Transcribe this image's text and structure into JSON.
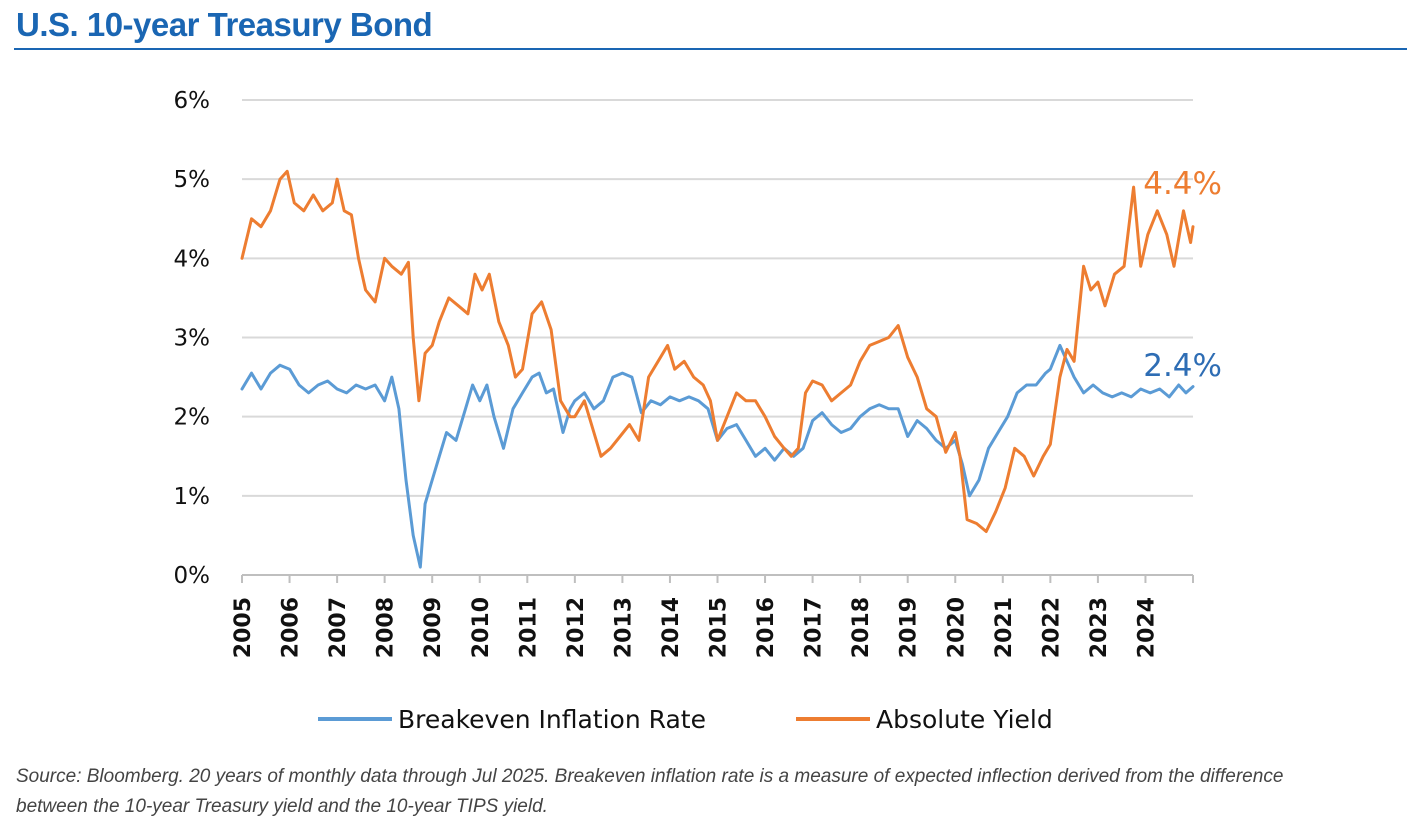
{
  "title": "U.S. 10-year Treasury Bond",
  "source": "Source: Bloomberg. 20 years of monthly data through Jul 2025. Breakeven inflation rate is a measure of expected inflection derived from the difference between the 10-year Treasury yield and the 10-year TIPS yield.",
  "colors": {
    "title": "#1a66b3",
    "breakeven": "#5b9bd5",
    "yield": "#ed7d31",
    "grid": "#d9d9d9",
    "breakeven_label": "#2e6db4"
  },
  "chart_data": {
    "type": "line",
    "title": "U.S. 10-year Treasury Bond",
    "xlabel": "",
    "ylabel": "",
    "ylim": [
      0,
      6
    ],
    "xlim": [
      2005,
      2025
    ],
    "grid": true,
    "legend_position": "bottom",
    "y_ticks": [
      0,
      1,
      2,
      3,
      4,
      5,
      6
    ],
    "y_tick_labels": [
      "0%",
      "1%",
      "2%",
      "3%",
      "4%",
      "5%",
      "6%"
    ],
    "x_tick_labels": [
      "2005",
      "2006",
      "2007",
      "2008",
      "2009",
      "2010",
      "2011",
      "2012",
      "2013",
      "2014",
      "2015",
      "2016",
      "2017",
      "2018",
      "2019",
      "2020",
      "2021",
      "2022",
      "2023",
      "2024"
    ],
    "series": [
      {
        "name": "Breakeven Inflation Rate",
        "color": "#5b9bd5",
        "end_label": "2.4%",
        "points": [
          [
            2005.0,
            2.35
          ],
          [
            2005.2,
            2.55
          ],
          [
            2005.4,
            2.35
          ],
          [
            2005.6,
            2.55
          ],
          [
            2005.8,
            2.65
          ],
          [
            2006.0,
            2.6
          ],
          [
            2006.2,
            2.4
          ],
          [
            2006.4,
            2.3
          ],
          [
            2006.6,
            2.4
          ],
          [
            2006.8,
            2.45
          ],
          [
            2007.0,
            2.35
          ],
          [
            2007.2,
            2.3
          ],
          [
            2007.4,
            2.4
          ],
          [
            2007.6,
            2.35
          ],
          [
            2007.8,
            2.4
          ],
          [
            2008.0,
            2.2
          ],
          [
            2008.15,
            2.5
          ],
          [
            2008.3,
            2.1
          ],
          [
            2008.45,
            1.2
          ],
          [
            2008.6,
            0.5
          ],
          [
            2008.75,
            0.1
          ],
          [
            2008.85,
            0.9
          ],
          [
            2009.0,
            1.2
          ],
          [
            2009.15,
            1.5
          ],
          [
            2009.3,
            1.8
          ],
          [
            2009.5,
            1.7
          ],
          [
            2009.7,
            2.1
          ],
          [
            2009.85,
            2.4
          ],
          [
            2010.0,
            2.2
          ],
          [
            2010.15,
            2.4
          ],
          [
            2010.3,
            2.0
          ],
          [
            2010.5,
            1.6
          ],
          [
            2010.7,
            2.1
          ],
          [
            2010.9,
            2.3
          ],
          [
            2011.1,
            2.5
          ],
          [
            2011.25,
            2.55
          ],
          [
            2011.4,
            2.3
          ],
          [
            2011.55,
            2.35
          ],
          [
            2011.75,
            1.8
          ],
          [
            2011.9,
            2.1
          ],
          [
            2012.0,
            2.2
          ],
          [
            2012.2,
            2.3
          ],
          [
            2012.4,
            2.1
          ],
          [
            2012.6,
            2.2
          ],
          [
            2012.8,
            2.5
          ],
          [
            2013.0,
            2.55
          ],
          [
            2013.2,
            2.5
          ],
          [
            2013.4,
            2.05
          ],
          [
            2013.6,
            2.2
          ],
          [
            2013.8,
            2.15
          ],
          [
            2014.0,
            2.25
          ],
          [
            2014.2,
            2.2
          ],
          [
            2014.4,
            2.25
          ],
          [
            2014.6,
            2.2
          ],
          [
            2014.8,
            2.1
          ],
          [
            2015.0,
            1.7
          ],
          [
            2015.2,
            1.85
          ],
          [
            2015.4,
            1.9
          ],
          [
            2015.6,
            1.7
          ],
          [
            2015.8,
            1.5
          ],
          [
            2016.0,
            1.6
          ],
          [
            2016.2,
            1.45
          ],
          [
            2016.4,
            1.6
          ],
          [
            2016.6,
            1.5
          ],
          [
            2016.8,
            1.6
          ],
          [
            2017.0,
            1.95
          ],
          [
            2017.2,
            2.05
          ],
          [
            2017.4,
            1.9
          ],
          [
            2017.6,
            1.8
          ],
          [
            2017.8,
            1.85
          ],
          [
            2018.0,
            2.0
          ],
          [
            2018.2,
            2.1
          ],
          [
            2018.4,
            2.15
          ],
          [
            2018.6,
            2.1
          ],
          [
            2018.8,
            2.1
          ],
          [
            2019.0,
            1.75
          ],
          [
            2019.2,
            1.95
          ],
          [
            2019.4,
            1.85
          ],
          [
            2019.6,
            1.7
          ],
          [
            2019.8,
            1.6
          ],
          [
            2020.0,
            1.7
          ],
          [
            2020.15,
            1.4
          ],
          [
            2020.3,
            1.0
          ],
          [
            2020.5,
            1.2
          ],
          [
            2020.7,
            1.6
          ],
          [
            2020.9,
            1.8
          ],
          [
            2021.1,
            2.0
          ],
          [
            2021.3,
            2.3
          ],
          [
            2021.5,
            2.4
          ],
          [
            2021.7,
            2.4
          ],
          [
            2021.9,
            2.55
          ],
          [
            2022.0,
            2.6
          ],
          [
            2022.2,
            2.9
          ],
          [
            2022.35,
            2.7
          ],
          [
            2022.5,
            2.5
          ],
          [
            2022.7,
            2.3
          ],
          [
            2022.9,
            2.4
          ],
          [
            2023.1,
            2.3
          ],
          [
            2023.3,
            2.25
          ],
          [
            2023.5,
            2.3
          ],
          [
            2023.7,
            2.25
          ],
          [
            2023.9,
            2.35
          ],
          [
            2024.1,
            2.3
          ],
          [
            2024.3,
            2.35
          ],
          [
            2024.5,
            2.25
          ],
          [
            2024.7,
            2.4
          ],
          [
            2024.85,
            2.3
          ],
          [
            2025.0,
            2.38
          ]
        ]
      },
      {
        "name": "Absolute Yield",
        "color": "#ed7d31",
        "end_label": "4.4%",
        "points": [
          [
            2005.0,
            4.0
          ],
          [
            2005.2,
            4.5
          ],
          [
            2005.4,
            4.4
          ],
          [
            2005.6,
            4.6
          ],
          [
            2005.8,
            5.0
          ],
          [
            2005.95,
            5.1
          ],
          [
            2006.1,
            4.7
          ],
          [
            2006.3,
            4.6
          ],
          [
            2006.5,
            4.8
          ],
          [
            2006.7,
            4.6
          ],
          [
            2006.9,
            4.7
          ],
          [
            2007.0,
            5.0
          ],
          [
            2007.15,
            4.6
          ],
          [
            2007.3,
            4.55
          ],
          [
            2007.45,
            4.0
          ],
          [
            2007.6,
            3.6
          ],
          [
            2007.8,
            3.45
          ],
          [
            2008.0,
            4.0
          ],
          [
            2008.15,
            3.9
          ],
          [
            2008.35,
            3.8
          ],
          [
            2008.5,
            3.95
          ],
          [
            2008.6,
            3.0
          ],
          [
            2008.72,
            2.2
          ],
          [
            2008.85,
            2.8
          ],
          [
            2009.0,
            2.9
          ],
          [
            2009.15,
            3.2
          ],
          [
            2009.35,
            3.5
          ],
          [
            2009.55,
            3.4
          ],
          [
            2009.75,
            3.3
          ],
          [
            2009.9,
            3.8
          ],
          [
            2010.05,
            3.6
          ],
          [
            2010.2,
            3.8
          ],
          [
            2010.4,
            3.2
          ],
          [
            2010.6,
            2.9
          ],
          [
            2010.75,
            2.5
          ],
          [
            2010.9,
            2.6
          ],
          [
            2011.1,
            3.3
          ],
          [
            2011.3,
            3.45
          ],
          [
            2011.5,
            3.1
          ],
          [
            2011.7,
            2.2
          ],
          [
            2011.9,
            2.0
          ],
          [
            2012.0,
            2.0
          ],
          [
            2012.2,
            2.2
          ],
          [
            2012.4,
            1.8
          ],
          [
            2012.55,
            1.5
          ],
          [
            2012.75,
            1.6
          ],
          [
            2012.95,
            1.75
          ],
          [
            2013.15,
            1.9
          ],
          [
            2013.35,
            1.7
          ],
          [
            2013.55,
            2.5
          ],
          [
            2013.75,
            2.7
          ],
          [
            2013.95,
            2.9
          ],
          [
            2014.1,
            2.6
          ],
          [
            2014.3,
            2.7
          ],
          [
            2014.5,
            2.5
          ],
          [
            2014.7,
            2.4
          ],
          [
            2014.85,
            2.2
          ],
          [
            2015.0,
            1.7
          ],
          [
            2015.2,
            2.0
          ],
          [
            2015.4,
            2.3
          ],
          [
            2015.6,
            2.2
          ],
          [
            2015.8,
            2.2
          ],
          [
            2016.0,
            2.0
          ],
          [
            2016.2,
            1.75
          ],
          [
            2016.4,
            1.6
          ],
          [
            2016.55,
            1.5
          ],
          [
            2016.7,
            1.6
          ],
          [
            2016.85,
            2.3
          ],
          [
            2017.0,
            2.45
          ],
          [
            2017.2,
            2.4
          ],
          [
            2017.4,
            2.2
          ],
          [
            2017.6,
            2.3
          ],
          [
            2017.8,
            2.4
          ],
          [
            2018.0,
            2.7
          ],
          [
            2018.2,
            2.9
          ],
          [
            2018.4,
            2.95
          ],
          [
            2018.6,
            3.0
          ],
          [
            2018.8,
            3.15
          ],
          [
            2019.0,
            2.75
          ],
          [
            2019.2,
            2.5
          ],
          [
            2019.4,
            2.1
          ],
          [
            2019.6,
            2.0
          ],
          [
            2019.8,
            1.55
          ],
          [
            2020.0,
            1.8
          ],
          [
            2020.1,
            1.5
          ],
          [
            2020.25,
            0.7
          ],
          [
            2020.45,
            0.65
          ],
          [
            2020.65,
            0.55
          ],
          [
            2020.85,
            0.8
          ],
          [
            2021.05,
            1.1
          ],
          [
            2021.25,
            1.6
          ],
          [
            2021.45,
            1.5
          ],
          [
            2021.65,
            1.25
          ],
          [
            2021.85,
            1.5
          ],
          [
            2022.0,
            1.65
          ],
          [
            2022.2,
            2.5
          ],
          [
            2022.35,
            2.85
          ],
          [
            2022.5,
            2.7
          ],
          [
            2022.7,
            3.9
          ],
          [
            2022.85,
            3.6
          ],
          [
            2023.0,
            3.7
          ],
          [
            2023.15,
            3.4
          ],
          [
            2023.35,
            3.8
          ],
          [
            2023.55,
            3.9
          ],
          [
            2023.75,
            4.9
          ],
          [
            2023.9,
            3.9
          ],
          [
            2024.05,
            4.3
          ],
          [
            2024.25,
            4.6
          ],
          [
            2024.45,
            4.3
          ],
          [
            2024.6,
            3.9
          ],
          [
            2024.8,
            4.6
          ],
          [
            2024.95,
            4.2
          ],
          [
            2025.0,
            4.4
          ]
        ]
      }
    ]
  }
}
